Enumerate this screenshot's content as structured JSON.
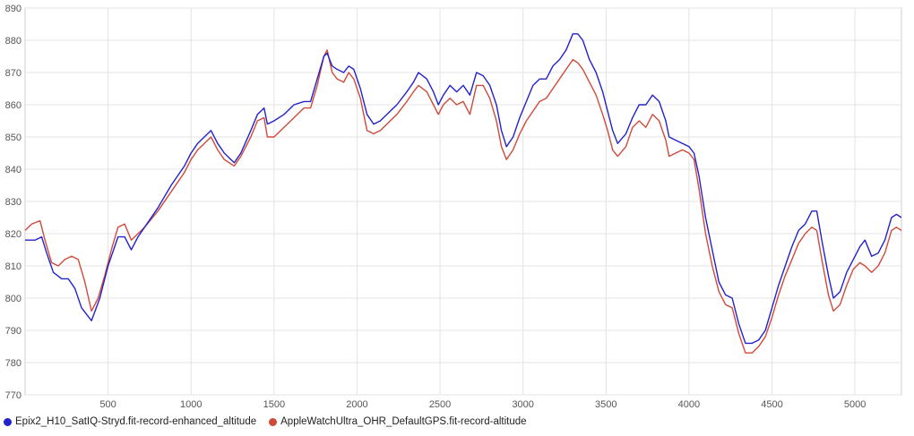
{
  "chart_data": {
    "type": "line",
    "title": "",
    "xlabel": "",
    "ylabel": "",
    "xlim": [
      0,
      5280
    ],
    "ylim": [
      770,
      890
    ],
    "x_ticks": [
      500,
      1000,
      1500,
      2000,
      2500,
      3000,
      3500,
      4000,
      4500,
      5000
    ],
    "y_ticks": [
      770,
      780,
      790,
      800,
      810,
      820,
      830,
      840,
      850,
      860,
      870,
      880,
      890
    ],
    "grid": true,
    "legend_position": "bottom-left",
    "series": [
      {
        "name": "Epix2_H10_SatIQ-Stryd.fit-record-enhanced_altitude",
        "color": "#2222cc",
        "points": [
          [
            0,
            818
          ],
          [
            60,
            818
          ],
          [
            100,
            819
          ],
          [
            130,
            814
          ],
          [
            170,
            808
          ],
          [
            220,
            806
          ],
          [
            260,
            806
          ],
          [
            300,
            803
          ],
          [
            340,
            797
          ],
          [
            400,
            793
          ],
          [
            450,
            800
          ],
          [
            500,
            810
          ],
          [
            560,
            819
          ],
          [
            600,
            819
          ],
          [
            640,
            815
          ],
          [
            680,
            819
          ],
          [
            720,
            822
          ],
          [
            800,
            828
          ],
          [
            880,
            835
          ],
          [
            960,
            841
          ],
          [
            1000,
            845
          ],
          [
            1040,
            848
          ],
          [
            1080,
            850
          ],
          [
            1120,
            852
          ],
          [
            1160,
            848
          ],
          [
            1200,
            845
          ],
          [
            1260,
            842
          ],
          [
            1300,
            845
          ],
          [
            1360,
            852
          ],
          [
            1400,
            857
          ],
          [
            1440,
            859
          ],
          [
            1460,
            854
          ],
          [
            1500,
            855
          ],
          [
            1560,
            857
          ],
          [
            1620,
            860
          ],
          [
            1680,
            861
          ],
          [
            1720,
            861
          ],
          [
            1760,
            868
          ],
          [
            1800,
            875
          ],
          [
            1820,
            876
          ],
          [
            1850,
            872
          ],
          [
            1880,
            871
          ],
          [
            1920,
            870
          ],
          [
            1950,
            872
          ],
          [
            1980,
            871
          ],
          [
            2020,
            865
          ],
          [
            2060,
            857
          ],
          [
            2100,
            854
          ],
          [
            2140,
            855
          ],
          [
            2180,
            857
          ],
          [
            2240,
            860
          ],
          [
            2300,
            864
          ],
          [
            2340,
            867
          ],
          [
            2370,
            870
          ],
          [
            2420,
            868
          ],
          [
            2460,
            864
          ],
          [
            2490,
            860
          ],
          [
            2520,
            863
          ],
          [
            2560,
            866
          ],
          [
            2600,
            864
          ],
          [
            2640,
            866
          ],
          [
            2680,
            863
          ],
          [
            2720,
            870
          ],
          [
            2760,
            869
          ],
          [
            2800,
            866
          ],
          [
            2840,
            860
          ],
          [
            2870,
            852
          ],
          [
            2900,
            847
          ],
          [
            2940,
            850
          ],
          [
            2980,
            856
          ],
          [
            3020,
            861
          ],
          [
            3060,
            866
          ],
          [
            3100,
            868
          ],
          [
            3140,
            868
          ],
          [
            3180,
            872
          ],
          [
            3220,
            874
          ],
          [
            3260,
            877
          ],
          [
            3300,
            882
          ],
          [
            3330,
            882
          ],
          [
            3360,
            880
          ],
          [
            3400,
            874
          ],
          [
            3440,
            870
          ],
          [
            3480,
            864
          ],
          [
            3510,
            858
          ],
          [
            3540,
            852
          ],
          [
            3570,
            848
          ],
          [
            3620,
            851
          ],
          [
            3660,
            856
          ],
          [
            3700,
            860
          ],
          [
            3740,
            860
          ],
          [
            3780,
            863
          ],
          [
            3820,
            861
          ],
          [
            3860,
            855
          ],
          [
            3880,
            850
          ],
          [
            3920,
            849
          ],
          [
            3960,
            848
          ],
          [
            4000,
            847
          ],
          [
            4030,
            845
          ],
          [
            4060,
            838
          ],
          [
            4100,
            825
          ],
          [
            4140,
            815
          ],
          [
            4180,
            805
          ],
          [
            4220,
            801
          ],
          [
            4260,
            800
          ],
          [
            4300,
            792
          ],
          [
            4340,
            786
          ],
          [
            4380,
            786
          ],
          [
            4420,
            787
          ],
          [
            4460,
            790
          ],
          [
            4500,
            797
          ],
          [
            4540,
            804
          ],
          [
            4580,
            810
          ],
          [
            4620,
            816
          ],
          [
            4660,
            821
          ],
          [
            4700,
            823
          ],
          [
            4740,
            827
          ],
          [
            4770,
            827
          ],
          [
            4800,
            818
          ],
          [
            4840,
            807
          ],
          [
            4870,
            800
          ],
          [
            4910,
            802
          ],
          [
            4950,
            808
          ],
          [
            4990,
            812
          ],
          [
            5030,
            816
          ],
          [
            5060,
            818
          ],
          [
            5100,
            813
          ],
          [
            5140,
            814
          ],
          [
            5180,
            818
          ],
          [
            5220,
            825
          ],
          [
            5250,
            826
          ],
          [
            5280,
            825
          ]
        ]
      },
      {
        "name": "AppleWatchUltra_OHR_DefaultGPS.fit-record-altitude",
        "color": "#d04a3a",
        "points": [
          [
            0,
            821
          ],
          [
            40,
            823
          ],
          [
            90,
            824
          ],
          [
            120,
            818
          ],
          [
            160,
            811
          ],
          [
            200,
            810
          ],
          [
            240,
            812
          ],
          [
            280,
            813
          ],
          [
            320,
            812
          ],
          [
            360,
            805
          ],
          [
            400,
            796
          ],
          [
            440,
            800
          ],
          [
            480,
            807
          ],
          [
            520,
            815
          ],
          [
            560,
            822
          ],
          [
            600,
            823
          ],
          [
            640,
            818
          ],
          [
            680,
            820
          ],
          [
            720,
            822
          ],
          [
            800,
            827
          ],
          [
            880,
            833
          ],
          [
            960,
            839
          ],
          [
            1000,
            843
          ],
          [
            1040,
            846
          ],
          [
            1080,
            848
          ],
          [
            1120,
            850
          ],
          [
            1160,
            846
          ],
          [
            1200,
            843
          ],
          [
            1260,
            841
          ],
          [
            1300,
            844
          ],
          [
            1360,
            850
          ],
          [
            1400,
            855
          ],
          [
            1440,
            856
          ],
          [
            1460,
            850
          ],
          [
            1500,
            850
          ],
          [
            1560,
            853
          ],
          [
            1620,
            856
          ],
          [
            1680,
            859
          ],
          [
            1720,
            859
          ],
          [
            1760,
            866
          ],
          [
            1800,
            875
          ],
          [
            1820,
            877
          ],
          [
            1850,
            870
          ],
          [
            1880,
            868
          ],
          [
            1920,
            867
          ],
          [
            1950,
            870
          ],
          [
            1980,
            868
          ],
          [
            2020,
            862
          ],
          [
            2060,
            852
          ],
          [
            2100,
            851
          ],
          [
            2140,
            852
          ],
          [
            2180,
            854
          ],
          [
            2240,
            857
          ],
          [
            2300,
            861
          ],
          [
            2340,
            864
          ],
          [
            2370,
            866
          ],
          [
            2420,
            864
          ],
          [
            2460,
            860
          ],
          [
            2490,
            857
          ],
          [
            2520,
            860
          ],
          [
            2560,
            862
          ],
          [
            2600,
            860
          ],
          [
            2640,
            861
          ],
          [
            2680,
            857
          ],
          [
            2720,
            866
          ],
          [
            2760,
            866
          ],
          [
            2800,
            862
          ],
          [
            2840,
            855
          ],
          [
            2870,
            847
          ],
          [
            2900,
            843
          ],
          [
            2940,
            846
          ],
          [
            2980,
            851
          ],
          [
            3020,
            855
          ],
          [
            3060,
            858
          ],
          [
            3100,
            861
          ],
          [
            3140,
            862
          ],
          [
            3180,
            865
          ],
          [
            3220,
            868
          ],
          [
            3260,
            871
          ],
          [
            3300,
            874
          ],
          [
            3330,
            873
          ],
          [
            3360,
            871
          ],
          [
            3400,
            867
          ],
          [
            3440,
            863
          ],
          [
            3480,
            857
          ],
          [
            3510,
            852
          ],
          [
            3540,
            846
          ],
          [
            3570,
            844
          ],
          [
            3620,
            847
          ],
          [
            3660,
            853
          ],
          [
            3700,
            855
          ],
          [
            3740,
            853
          ],
          [
            3780,
            857
          ],
          [
            3820,
            855
          ],
          [
            3860,
            849
          ],
          [
            3880,
            844
          ],
          [
            3920,
            845
          ],
          [
            3960,
            846
          ],
          [
            4000,
            845
          ],
          [
            4030,
            843
          ],
          [
            4060,
            834
          ],
          [
            4100,
            820
          ],
          [
            4140,
            810
          ],
          [
            4180,
            802
          ],
          [
            4220,
            798
          ],
          [
            4260,
            797
          ],
          [
            4300,
            789
          ],
          [
            4340,
            783
          ],
          [
            4380,
            783
          ],
          [
            4420,
            785
          ],
          [
            4460,
            788
          ],
          [
            4500,
            794
          ],
          [
            4540,
            801
          ],
          [
            4580,
            807
          ],
          [
            4620,
            812
          ],
          [
            4660,
            817
          ],
          [
            4700,
            820
          ],
          [
            4740,
            822
          ],
          [
            4770,
            821
          ],
          [
            4800,
            812
          ],
          [
            4840,
            801
          ],
          [
            4870,
            796
          ],
          [
            4910,
            798
          ],
          [
            4950,
            804
          ],
          [
            4990,
            809
          ],
          [
            5030,
            811
          ],
          [
            5060,
            810
          ],
          [
            5100,
            808
          ],
          [
            5140,
            810
          ],
          [
            5180,
            814
          ],
          [
            5220,
            821
          ],
          [
            5250,
            822
          ],
          [
            5280,
            821
          ]
        ]
      }
    ]
  }
}
